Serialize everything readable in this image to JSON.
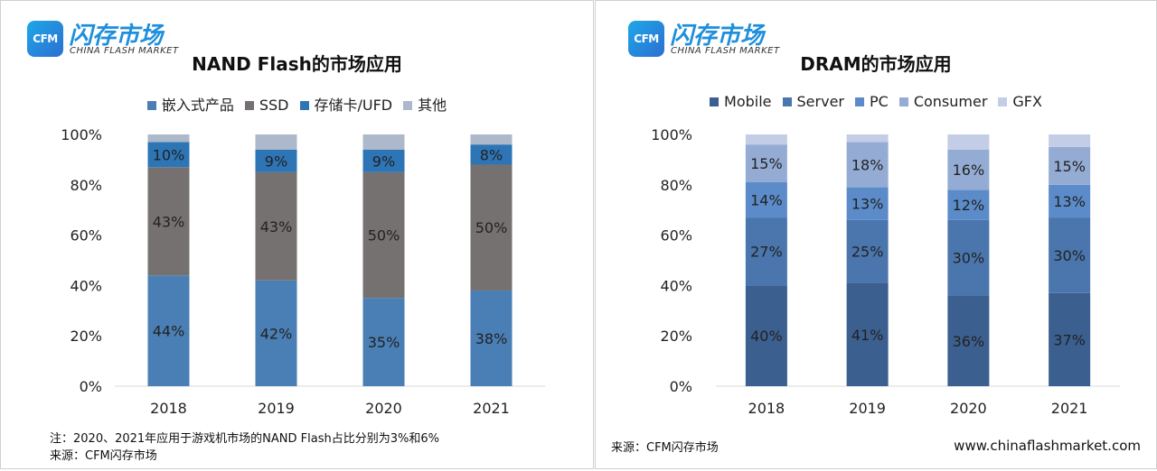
{
  "panels": [
    {
      "logo": {
        "badge": "CFM",
        "name_cn": "闪存市场",
        "name_en": "CHINA FLASH MARKET"
      },
      "chart_data": {
        "type": "bar",
        "stacked": true,
        "title": "NAND Flash的市场应用",
        "categories": [
          "2018",
          "2019",
          "2020",
          "2021"
        ],
        "ylim": [
          0,
          100
        ],
        "yticks": [
          "0%",
          "20%",
          "40%",
          "60%",
          "80%",
          "100%"
        ],
        "legend_position": "top",
        "series": [
          {
            "name": "嵌入式产品",
            "color": "#4a7fb5",
            "values": [
              44,
              42,
              35,
              38
            ],
            "labels": [
              "44%",
              "42%",
              "35%",
              "38%"
            ]
          },
          {
            "name": "SSD",
            "color": "#767171",
            "values": [
              43,
              43,
              50,
              50
            ],
            "labels": [
              "43%",
              "43%",
              "50%",
              "50%"
            ]
          },
          {
            "name": "存储卡/UFD",
            "color": "#2e75b6",
            "values": [
              10,
              9,
              9,
              8
            ],
            "labels": [
              "10%",
              "9%",
              "9%",
              "8%"
            ]
          },
          {
            "name": "其他",
            "color": "#adb9ca",
            "values": [
              3,
              6,
              6,
              4
            ],
            "labels": [
              "",
              "",
              "",
              ""
            ]
          }
        ]
      },
      "notes": [
        "注：2020、2021年应用于游戏机市场的NAND Flash占比分别为3%和6%",
        "来源：CFM闪存市场"
      ]
    },
    {
      "logo": {
        "badge": "CFM",
        "name_cn": "闪存市场",
        "name_en": "CHINA FLASH MARKET"
      },
      "chart_data": {
        "type": "bar",
        "stacked": true,
        "title": "DRAM的市场应用",
        "categories": [
          "2018",
          "2019",
          "2020",
          "2021"
        ],
        "ylim": [
          0,
          100
        ],
        "yticks": [
          "0%",
          "20%",
          "40%",
          "60%",
          "80%",
          "100%"
        ],
        "legend_position": "top",
        "series": [
          {
            "name": "Mobile",
            "color": "#3b5f8f",
            "values": [
              40,
              41,
              36,
              37
            ],
            "labels": [
              "40%",
              "41%",
              "36%",
              "37%"
            ]
          },
          {
            "name": "Server",
            "color": "#4a76ad",
            "values": [
              27,
              25,
              30,
              30
            ],
            "labels": [
              "27%",
              "25%",
              "30%",
              "30%"
            ]
          },
          {
            "name": "PC",
            "color": "#5b8cc9",
            "values": [
              14,
              13,
              12,
              13
            ],
            "labels": [
              "14%",
              "13%",
              "12%",
              "13%"
            ]
          },
          {
            "name": "Consumer",
            "color": "#94acd4",
            "values": [
              15,
              18,
              16,
              15
            ],
            "labels": [
              "15%",
              "18%",
              "16%",
              "15%"
            ]
          },
          {
            "name": "GFX",
            "color": "#c3cde6",
            "values": [
              4,
              3,
              6,
              5
            ],
            "labels": [
              "",
              "",
              "",
              ""
            ]
          }
        ]
      },
      "notes": [
        "来源：CFM闪存市场"
      ],
      "website": "www.chinaflashmarket.com"
    }
  ]
}
